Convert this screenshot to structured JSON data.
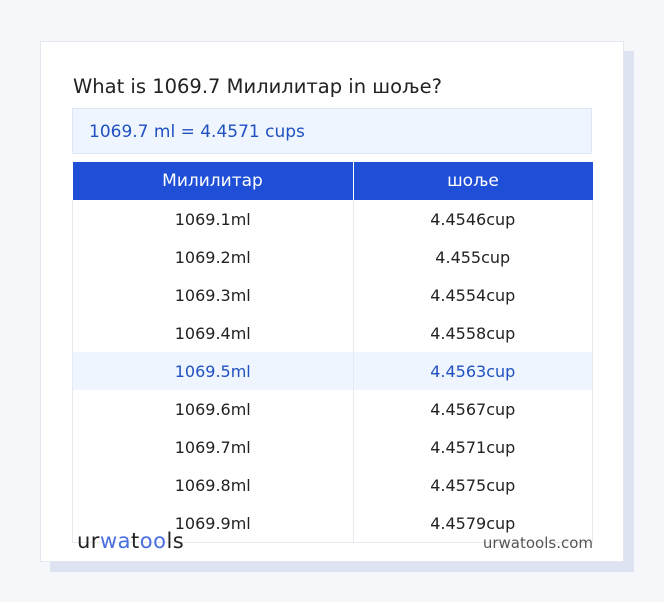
{
  "title": "What is 1069.7 Милилитар in шоље?",
  "result": "1069.7 ml = 4.4571 cups",
  "table": {
    "headers": [
      "Милилитар",
      "шоље"
    ],
    "rows": [
      [
        "1069.1ml",
        "4.4546cup"
      ],
      [
        "1069.2ml",
        "4.455cup"
      ],
      [
        "1069.3ml",
        "4.4554cup"
      ],
      [
        "1069.4ml",
        "4.4558cup"
      ],
      [
        "1069.5ml",
        "4.4563cup"
      ],
      [
        "1069.6ml",
        "4.4567cup"
      ],
      [
        "1069.7ml",
        "4.4571cup"
      ],
      [
        "1069.8ml",
        "4.4575cup"
      ],
      [
        "1069.9ml",
        "4.4579cup"
      ]
    ],
    "highlighted_row": 4
  },
  "footer": {
    "logo": "urwatools",
    "site": "urwatools.com"
  },
  "colors": {
    "accent": "#1f4fd6",
    "highlight_bg": "#eef5ff"
  }
}
